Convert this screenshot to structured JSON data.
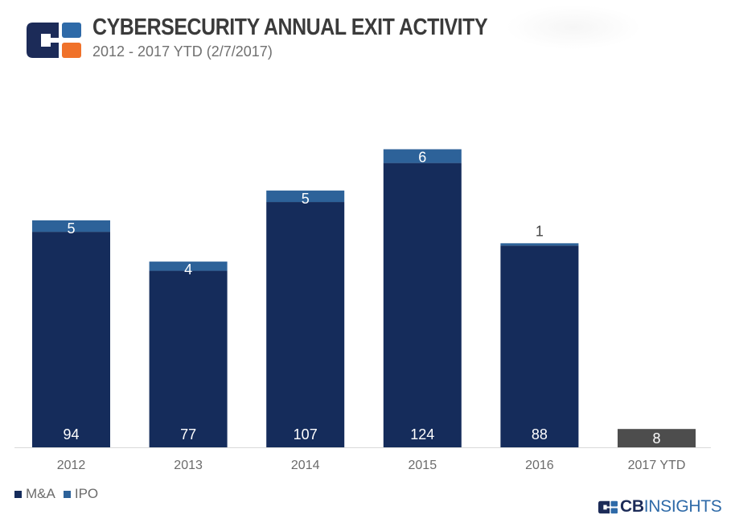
{
  "header": {
    "title": "CYBERSECURITY ANNUAL EXIT ACTIVITY",
    "subtitle": "2012 - 2017 YTD (2/7/2017)"
  },
  "brand": {
    "cb": "CB",
    "insights": "INSIGHTS"
  },
  "colors": {
    "ma": "#152c5b",
    "ipo": "#2d6299",
    "ytd": "#4d4d4d",
    "logo_dark": "#1c2b58",
    "logo_orange": "#f0722a",
    "logo_blue": "#2e6aa8",
    "axis_text": "#6b6b6b"
  },
  "chart_data": {
    "type": "bar",
    "stacked": true,
    "categories": [
      "2012",
      "2013",
      "2014",
      "2015",
      "2016",
      "2017 YTD"
    ],
    "series": [
      {
        "name": "M&A",
        "values": [
          94,
          77,
          107,
          124,
          88,
          null
        ]
      },
      {
        "name": "IPO",
        "values": [
          5,
          4,
          5,
          6,
          1,
          null
        ]
      }
    ],
    "ytd_total": {
      "category": "2017 YTD",
      "value": 8
    },
    "title": "CYBERSECURITY ANNUAL EXIT ACTIVITY",
    "subtitle": "2012 - 2017 YTD (2/7/2017)",
    "xlabel": "",
    "ylabel": "",
    "legend": "bottom-left",
    "grid": false
  }
}
